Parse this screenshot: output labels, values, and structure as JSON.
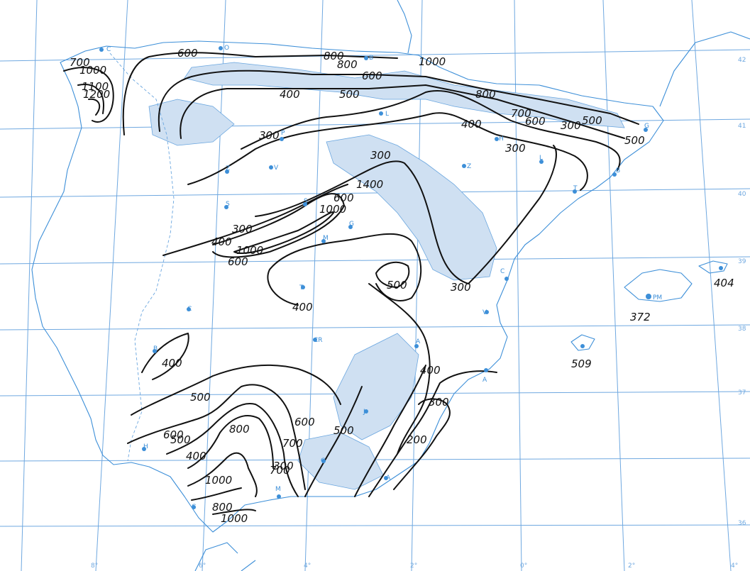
{
  "map": {
    "colors": {
      "grid": "#6fa8e0",
      "coast": "#3d8fd8",
      "isolines": "#111111",
      "relief": "#cfe0f2"
    },
    "latitude_labels": [
      "42",
      "41",
      "40",
      "39",
      "38",
      "37",
      "36"
    ],
    "longitude_labels": [
      "8°",
      "6°",
      "4°",
      "2°",
      "0°",
      "2°",
      "4°"
    ],
    "isoline_labels": [
      "700",
      "1000",
      "1100",
      "1200",
      "600",
      "800",
      "800",
      "1000",
      "600",
      "400",
      "500",
      "300",
      "300",
      "300",
      "800",
      "700",
      "600",
      "500",
      "400",
      "300",
      "500",
      "300",
      "400",
      "1000",
      "1400",
      "1000",
      "600",
      "400",
      "300",
      "600",
      "500",
      "400",
      "500",
      "400",
      "500",
      "300",
      "600",
      "500",
      "800",
      "700",
      "400",
      "600",
      "700",
      "300",
      "200",
      "1000",
      "800",
      "1000"
    ],
    "city_labels": [
      "C",
      "O",
      "B",
      "L",
      "P",
      "Z",
      "V",
      "S",
      "Z",
      "L",
      "H",
      "G",
      "B",
      "S",
      "G",
      "M",
      "T",
      "C",
      "C",
      "V",
      "T",
      "CR",
      "B",
      "A",
      "A",
      "H",
      "M",
      "G",
      "A",
      "C",
      "J",
      "PM"
    ],
    "island_values": [
      "372",
      "404",
      "509"
    ]
  }
}
